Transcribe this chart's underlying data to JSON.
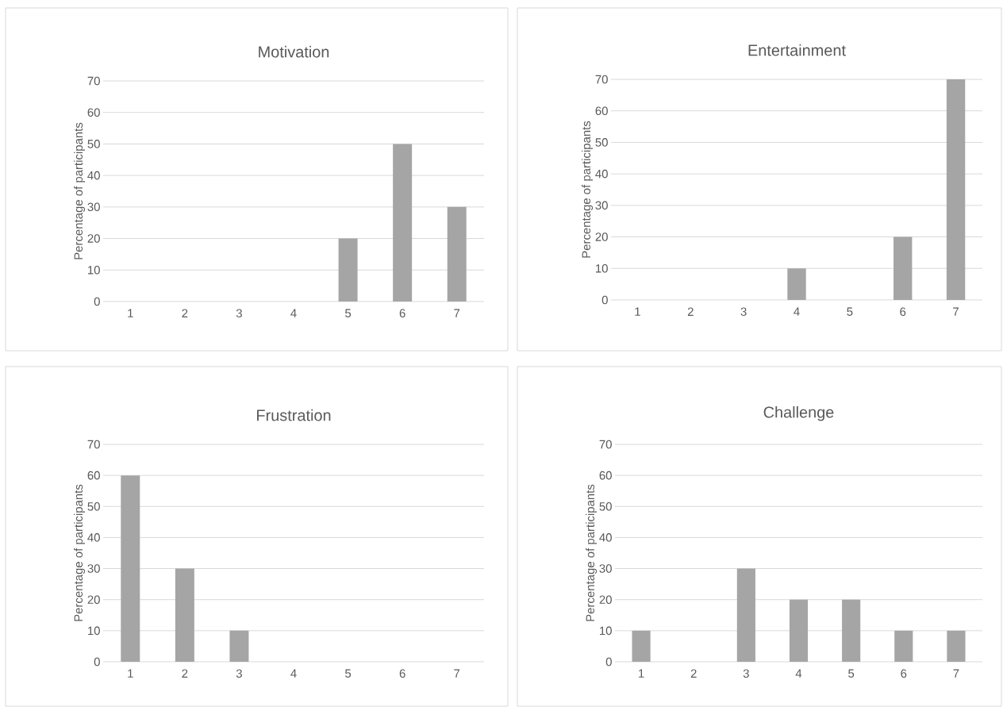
{
  "chart_data": [
    {
      "type": "bar",
      "title": "Motivation",
      "ylabel": "Percentage of participants",
      "categories": [
        "1",
        "2",
        "3",
        "4",
        "5",
        "6",
        "7"
      ],
      "values": [
        0,
        0,
        0,
        0,
        20,
        50,
        30
      ],
      "color": "#a5a5a5",
      "ylim": [
        0,
        70
      ],
      "yticks": [
        0,
        10,
        20,
        30,
        40,
        50,
        60,
        70
      ],
      "grid": "y"
    },
    {
      "type": "bar",
      "title": "Entertainment",
      "ylabel": "Percentage of participants",
      "categories": [
        "1",
        "2",
        "3",
        "4",
        "5",
        "6",
        "7"
      ],
      "values": [
        0,
        0,
        0,
        10,
        0,
        20,
        70
      ],
      "color": "#a5a5a5",
      "ylim": [
        0,
        70
      ],
      "yticks": [
        0,
        10,
        20,
        30,
        40,
        50,
        60,
        70
      ],
      "grid": "y"
    },
    {
      "type": "bar",
      "title": "Frustration",
      "ylabel": "Percentage of participants",
      "categories": [
        "1",
        "2",
        "3",
        "4",
        "5",
        "6",
        "7"
      ],
      "values": [
        60,
        30,
        10,
        0,
        0,
        0,
        0
      ],
      "color": "#a5a5a5",
      "ylim": [
        0,
        70
      ],
      "yticks": [
        0,
        10,
        20,
        30,
        40,
        50,
        60,
        70
      ],
      "grid": "y"
    },
    {
      "type": "bar",
      "title": "Challenge",
      "ylabel": "Percentage of participants",
      "categories": [
        "1",
        "2",
        "3",
        "4",
        "5",
        "6",
        "7"
      ],
      "values": [
        10,
        0,
        30,
        20,
        20,
        10,
        10
      ],
      "color": "#a5a5a5",
      "ylim": [
        0,
        70
      ],
      "yticks": [
        0,
        10,
        20,
        30,
        40,
        50,
        60,
        70
      ],
      "grid": "y"
    }
  ]
}
